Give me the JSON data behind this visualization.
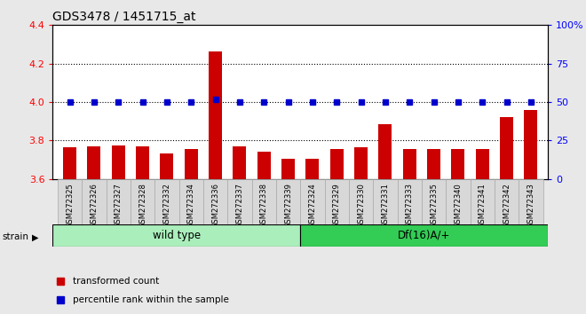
{
  "title": "GDS3478 / 1451715_at",
  "samples": [
    "GSM272325",
    "GSM272326",
    "GSM272327",
    "GSM272328",
    "GSM272332",
    "GSM272334",
    "GSM272336",
    "GSM272337",
    "GSM272338",
    "GSM272339",
    "GSM272324",
    "GSM272329",
    "GSM272330",
    "GSM272331",
    "GSM272333",
    "GSM272335",
    "GSM272340",
    "GSM272341",
    "GSM272342",
    "GSM272343"
  ],
  "bar_values": [
    3.765,
    3.77,
    3.775,
    3.77,
    3.735,
    3.755,
    4.265,
    3.77,
    3.74,
    3.705,
    3.705,
    3.755,
    3.765,
    3.885,
    3.755,
    3.755,
    3.755,
    3.755,
    3.92,
    3.96
  ],
  "percentile_values": [
    50,
    50,
    50,
    50,
    50,
    50,
    52,
    50,
    50,
    50,
    50,
    50,
    50,
    50,
    50,
    50,
    50,
    50,
    50,
    50
  ],
  "bar_color": "#cc0000",
  "percentile_color": "#0000cc",
  "ylim_left": [
    3.6,
    4.4
  ],
  "ylim_right": [
    0,
    100
  ],
  "yticks_left": [
    3.6,
    3.8,
    4.0,
    4.2,
    4.4
  ],
  "yticks_right": [
    0,
    25,
    50,
    75,
    100
  ],
  "ytick_labels_right": [
    "0",
    "25",
    "50",
    "75",
    "100%"
  ],
  "grid_values": [
    3.8,
    4.0,
    4.2
  ],
  "wild_type_count": 10,
  "df_count": 10,
  "wild_type_label": "wild type",
  "df_label": "Df(16)A/+",
  "strain_label": "strain",
  "legend_bar_label": "transformed count",
  "legend_percentile_label": "percentile rank within the sample",
  "bg_color": "#e8e8e8",
  "wt_color": "#aaeebb",
  "df_color": "#33cc55",
  "bar_width": 0.55,
  "plot_bg": "#ffffff"
}
